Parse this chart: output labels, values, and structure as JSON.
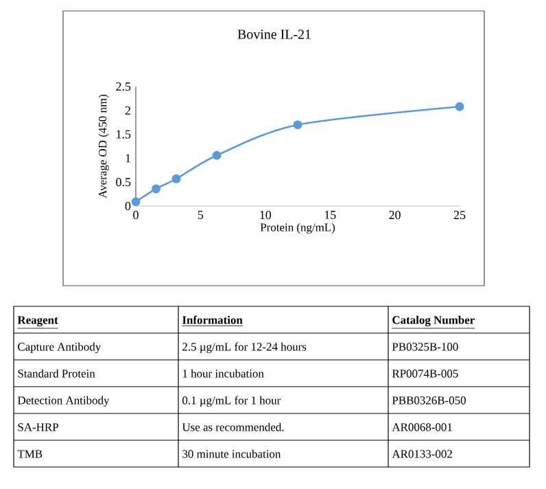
{
  "chart_data": {
    "type": "line",
    "title": "Bovine IL-21",
    "xlabel": "Protein (ng/mL)",
    "ylabel": "Average OD (450 nm)",
    "x": [
      0,
      1.5625,
      3.125,
      6.25,
      12.5,
      25
    ],
    "series": [
      {
        "color": "#5b9bd5",
        "values": [
          0.09,
          0.36,
          0.57,
          1.06,
          1.7,
          2.08
        ]
      }
    ],
    "xlim": [
      0,
      25
    ],
    "xticks": [
      0,
      5,
      10,
      15,
      20,
      25
    ],
    "ylim": [
      0,
      2.5
    ],
    "yticks": [
      0,
      0.5,
      1,
      1.5,
      2,
      2.5
    ],
    "marker": "circle",
    "annotations": [
      "Reagent",
      "Information",
      "Catalog Number",
      "Capture Antibody",
      "2.5 µg/mL for 12-24 hours",
      "PB0325B-100",
      "Standard Protein",
      "1 hour incubation",
      "RP0074B-005",
      "Detection Antibody",
      "0.1 µg/mL for 1 hour",
      "PBB0326B-050",
      "SA-HRP",
      "Use as recommended.",
      "AR0068-001",
      "TMB",
      "30 minute incubation",
      "AR0133-002"
    ]
  }
}
